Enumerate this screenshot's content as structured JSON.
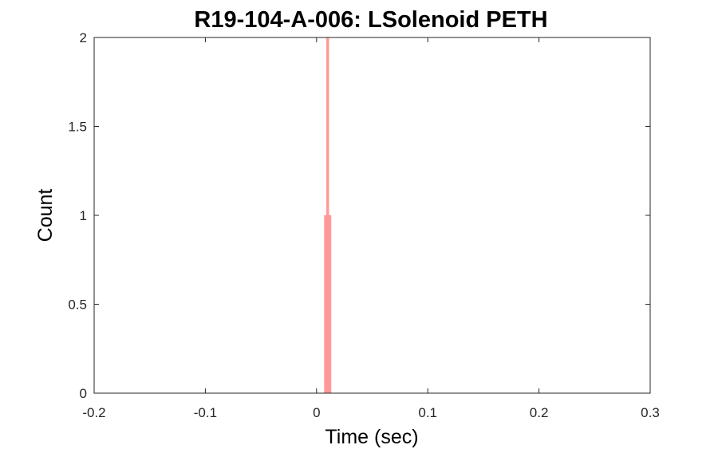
{
  "chart_data": {
    "type": "bar",
    "title": "R19-104-A-006: LSolenoid PETH",
    "xlabel": "Time (sec)",
    "ylabel": "Count",
    "xlim": [
      -0.2,
      0.3
    ],
    "ylim": [
      0,
      2
    ],
    "xticks": [
      -0.2,
      -0.1,
      0,
      0.1,
      0.2,
      0.3
    ],
    "xtick_labels": [
      "-0.2",
      "-0.1",
      "0",
      "0.1",
      "0.2",
      "0.3"
    ],
    "yticks": [
      0,
      0.5,
      1,
      1.5,
      2
    ],
    "ytick_labels": [
      "0",
      "0.5",
      "1",
      "1.5",
      "2"
    ],
    "bin_width": 0.001,
    "bars": [
      {
        "x": 0.0075,
        "value": 1
      },
      {
        "x": 0.0085,
        "value": 1
      },
      {
        "x": 0.0095,
        "value": 2
      },
      {
        "x": 0.0105,
        "value": 2
      },
      {
        "x": 0.0115,
        "value": 1
      },
      {
        "x": 0.0125,
        "value": 1
      }
    ],
    "bar_color": "#FF9999",
    "grid": false,
    "legend": "none"
  }
}
